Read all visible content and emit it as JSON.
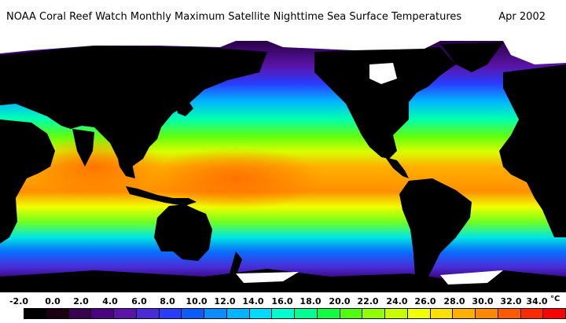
{
  "header": {
    "title": "NOAA Coral Reef Watch Monthly Maximum Satellite Nighttime Sea Surface Temperatures",
    "date": "Apr 2002"
  },
  "legend": {
    "unit": "°C",
    "labels": [
      "-2.0",
      "0.0",
      "2.0",
      "4.0",
      "6.0",
      "8.0",
      "10.0",
      "12.0",
      "14.0",
      "16.0",
      "18.0",
      "20.0",
      "22.0",
      "24.0",
      "26.0",
      "28.0",
      "30.0",
      "32.0",
      "34.0"
    ],
    "colors": [
      "#000000",
      "#1a0010",
      "#3a0050",
      "#4b0082",
      "#5a14a8",
      "#4a2cd6",
      "#2a3cff",
      "#0a5cff",
      "#0a8cff",
      "#00b4ff",
      "#00dcff",
      "#00ffd0",
      "#00ff90",
      "#10ff40",
      "#50ff10",
      "#90ff00",
      "#c8ff00",
      "#f0ff00",
      "#ffe000",
      "#ffb000",
      "#ff8800",
      "#ff5a00",
      "#ff2a00",
      "#ff0000"
    ]
  },
  "map": {
    "land_color": "#000000",
    "ice_color": "#ffffff"
  }
}
